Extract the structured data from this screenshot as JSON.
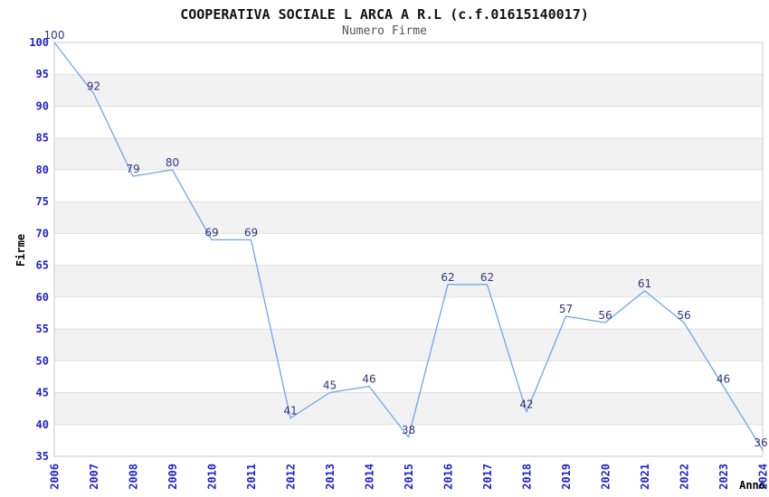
{
  "chart_data": {
    "type": "line",
    "title": "COOPERATIVA SOCIALE L ARCA A R.L (c.f.01615140017)",
    "subtitle": "Numero Firme",
    "xlabel": "Anno",
    "ylabel": "Firme",
    "x": [
      2006,
      2007,
      2008,
      2009,
      2010,
      2011,
      2012,
      2013,
      2014,
      2015,
      2016,
      2017,
      2018,
      2019,
      2020,
      2021,
      2022,
      2023,
      2024
    ],
    "series": [
      {
        "name": "Numero Firme",
        "values": [
          100,
          92,
          79,
          80,
          69,
          69,
          41,
          45,
          46,
          38,
          62,
          62,
          42,
          57,
          56,
          61,
          56,
          46,
          36
        ]
      }
    ],
    "ylim": [
      35,
      100
    ],
    "ytick_step": 5,
    "grid": "horizontal gridlines with alternating shaded bands",
    "legend": "none",
    "data_labels": true,
    "colors": {
      "line": "#6FA5E6",
      "tick_label": "#2222CC",
      "data_label": "#333380",
      "band_gray": "#F2F2F2",
      "band_white": "#FFFFFF",
      "gridline": "#E0E0E0",
      "border": "#C9C9C9",
      "title": "#111111",
      "subtitle": "#555555"
    }
  }
}
